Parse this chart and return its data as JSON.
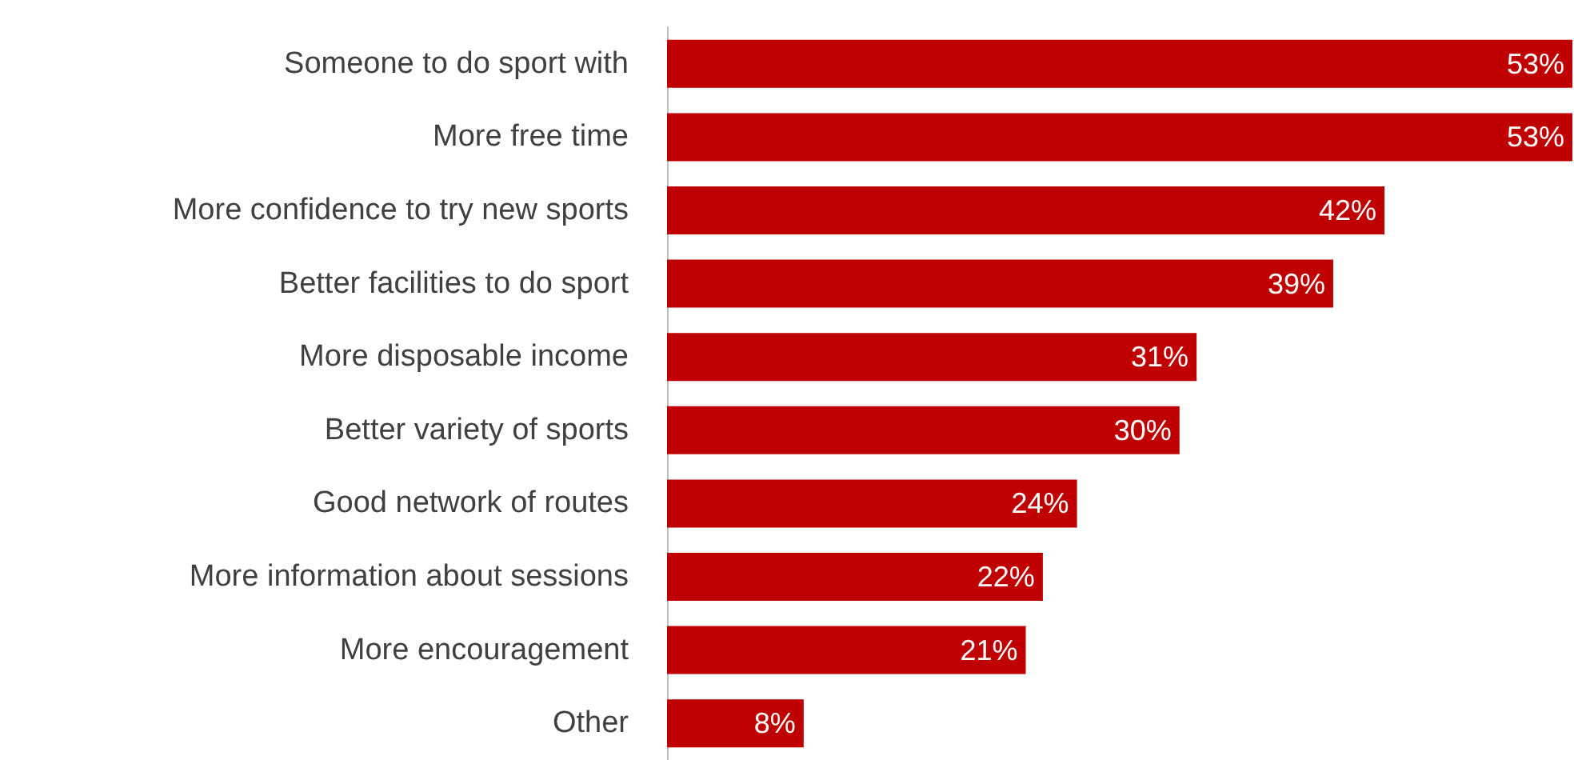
{
  "chart_data": {
    "type": "bar",
    "orientation": "horizontal",
    "categories": [
      "Someone to do sport with",
      "More free time",
      "More confidence to try new sports",
      "Better facilities to do sport",
      "More disposable income",
      "Better variety of sports",
      "Good network of routes",
      "More information about sessions",
      "More encouragement",
      "Other"
    ],
    "values": [
      53,
      53,
      42,
      39,
      31,
      30,
      24,
      22,
      21,
      8
    ],
    "value_labels": [
      "53%",
      "53%",
      "42%",
      "39%",
      "31%",
      "30%",
      "24%",
      "22%",
      "21%",
      "8%"
    ],
    "color": "#c00000"
  }
}
